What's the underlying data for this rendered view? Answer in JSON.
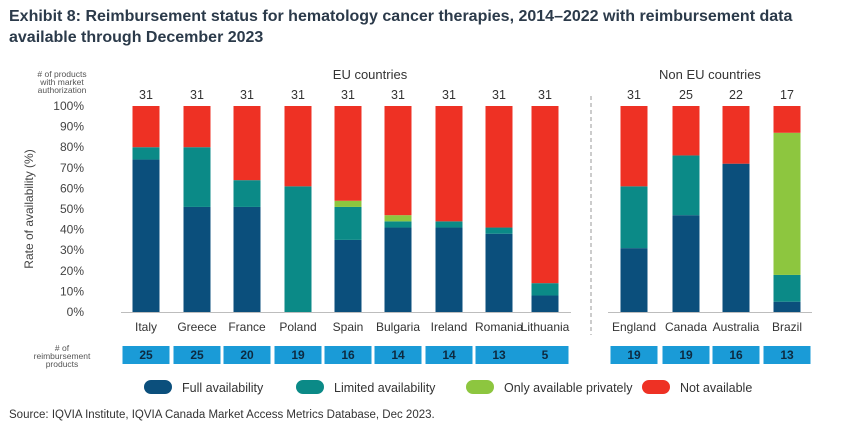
{
  "title": "Exhibit 8: Reimbursement status for hematology cancer therapies, 2014–2022 with reimbursement data available through December 2023",
  "source": "Source: IQVIA Institute, IQVIA Canada Market Access Metrics Database, Dec 2023.",
  "chart_data": {
    "type": "bar",
    "stacked": true,
    "ylabel": "Rate of availability (%)",
    "ylim": [
      0,
      100
    ],
    "yticks": [
      "0%",
      "10%",
      "20%",
      "30%",
      "40%",
      "50%",
      "60%",
      "70%",
      "80%",
      "90%",
      "100%"
    ],
    "group_labels": [
      "EU countries",
      "Non EU countries"
    ],
    "top_row_label": [
      "# of products",
      "with market",
      "authorization"
    ],
    "bottom_row_label": [
      "# of",
      "reimbursement",
      "products"
    ],
    "categories": [
      "Italy",
      "Greece",
      "France",
      "Poland",
      "Spain",
      "Bulgaria",
      "Ireland",
      "Romania",
      "Lithuania",
      "England",
      "Canada",
      "Australia",
      "Brazil"
    ],
    "groups": [
      "EU",
      "EU",
      "EU",
      "EU",
      "EU",
      "EU",
      "EU",
      "EU",
      "EU",
      "Non EU",
      "Non EU",
      "Non EU",
      "Non EU"
    ],
    "authorized_products": [
      31,
      31,
      31,
      31,
      31,
      31,
      31,
      31,
      31,
      31,
      25,
      22,
      17
    ],
    "reimbursed_products": [
      25,
      25,
      20,
      19,
      16,
      14,
      14,
      13,
      5,
      19,
      19,
      16,
      13
    ],
    "series": [
      {
        "name": "Full availability",
        "color": "#0b4f7c",
        "values": [
          74,
          51,
          51,
          0,
          35,
          41,
          41,
          38,
          8,
          31,
          47,
          72,
          5
        ]
      },
      {
        "name": "Limited availability",
        "color": "#0b8a87",
        "values": [
          6,
          29,
          13,
          61,
          16,
          3,
          3,
          3,
          6,
          30,
          29,
          0,
          13
        ]
      },
      {
        "name": "Only available privately",
        "color": "#8dc63f",
        "values": [
          0,
          0,
          0,
          0,
          3,
          3,
          0,
          0,
          0,
          0,
          0,
          0,
          69
        ]
      },
      {
        "name": "Not available",
        "color": "#ee3124",
        "values": [
          20,
          20,
          36,
          39,
          46,
          53,
          56,
          59,
          86,
          39,
          24,
          28,
          13
        ]
      }
    ],
    "badge_color": "#1a9bd7"
  }
}
